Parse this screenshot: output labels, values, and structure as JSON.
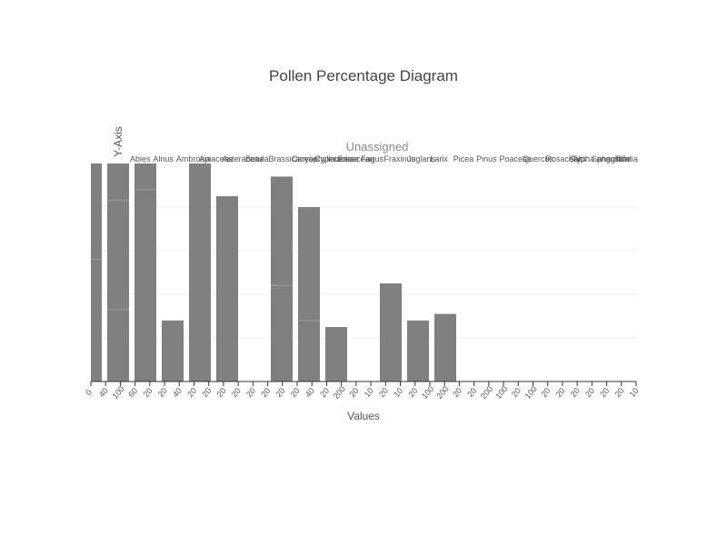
{
  "chart_data": {
    "type": "bar",
    "title": "Pollen Percentage Diagram",
    "xlabel": "Values",
    "ylabel": "Y-Axis",
    "zone_label": "Unassigned",
    "ylim": [
      0,
      100
    ],
    "grid": true,
    "top_taxa_labels": [
      "Abies",
      "Alnus",
      "Ambrosia",
      "Apiaceae",
      "Asteraceae",
      "Betula",
      "Brassicaceae",
      "Caryophyllaceae",
      "Cyperaceae",
      "Ericaceae",
      "Fagus",
      "Fraxinus",
      "Juglans",
      "Larix",
      "Picea",
      "Pinus",
      "Poaceae",
      "Quercus",
      "Rosaceae",
      "Salix",
      "Sphagnum",
      "Tilia",
      "Typha angustifolia"
    ],
    "xtick_labels": [
      "0",
      "40",
      "100",
      "60",
      "20",
      "20",
      "40",
      "20",
      "20",
      "20",
      "20",
      "20",
      "20",
      "20",
      "20",
      "40",
      "20",
      "200",
      "20",
      "10",
      "20",
      "10",
      "20",
      "100",
      "200",
      "20",
      "20",
      "200",
      "100",
      "20",
      "100",
      "20",
      "20",
      "20",
      "20",
      "20",
      "20",
      "10"
    ],
    "bars": [
      {
        "value": 100,
        "segments": [
          56
        ]
      },
      {
        "value": 100,
        "segments": [
          83,
          33
        ]
      },
      {
        "value": 100,
        "segments": [
          88
        ]
      },
      {
        "value": 28,
        "segments": []
      },
      {
        "value": 100,
        "segments": []
      },
      {
        "value": 85,
        "segments": []
      },
      {
        "value": 0,
        "segments": []
      },
      {
        "value": 94,
        "segments": [
          44
        ]
      },
      {
        "value": 80,
        "segments": [
          28
        ]
      },
      {
        "value": 25,
        "segments": []
      },
      {
        "value": 0,
        "segments": []
      },
      {
        "value": 45,
        "segments": []
      },
      {
        "value": 28,
        "segments": []
      },
      {
        "value": 31,
        "segments": []
      },
      {
        "value": 0,
        "segments": []
      },
      {
        "value": 0,
        "segments": []
      },
      {
        "value": 0,
        "segments": []
      },
      {
        "value": 0,
        "segments": []
      },
      {
        "value": 0,
        "segments": []
      },
      {
        "value": 0,
        "segments": []
      }
    ]
  }
}
